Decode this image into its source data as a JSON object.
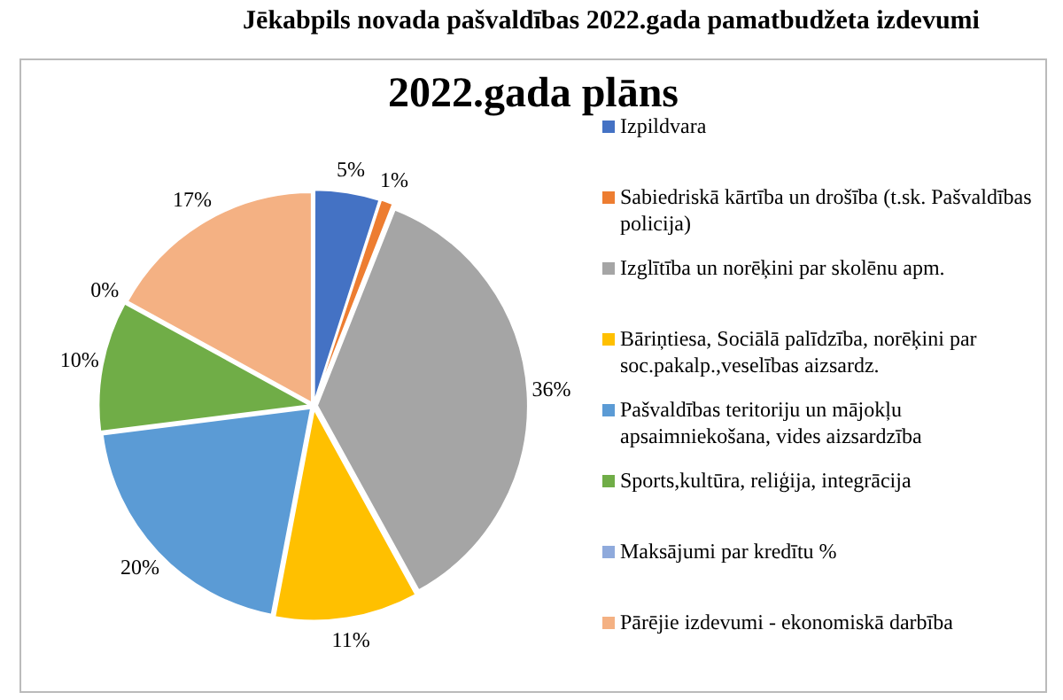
{
  "chart_data": {
    "type": "pie",
    "title": "Jēkabpils novada pašvaldības 2022.gada pamatbudžeta izdevumi",
    "subtitle": "2022.gada plāns",
    "categories": [
      "Izpildvara",
      "Sabiedriskā kārtība un drošība (t.sk. Pašvaldības policija)",
      "Izglītība un norēķini par skolēnu apm.",
      "Bāriņtiesa, Sociālā palīdzība, norēķini par soc.pakalp.,veselības aizsardz.",
      "Pašvaldības teritoriju un mājokļu apsaimniekošana, vides aizsardzība",
      "Sports,kultūra, reliģija, integrācija",
      "Maksājumi par kredītu %",
      "Pārējie izdevumi - ekonomiskā darbība"
    ],
    "values": [
      5,
      1,
      36,
      11,
      20,
      10,
      0,
      17
    ],
    "colors": [
      "#4472c4",
      "#ed7d31",
      "#a5a5a5",
      "#ffc000",
      "#5b9bd5",
      "#70ad47",
      "#8faadc",
      "#f4b183"
    ],
    "value_labels": [
      "5%",
      "1%",
      "36%",
      "11%",
      "20%",
      "10%",
      "0%",
      "17%"
    ],
    "legend": "right"
  }
}
